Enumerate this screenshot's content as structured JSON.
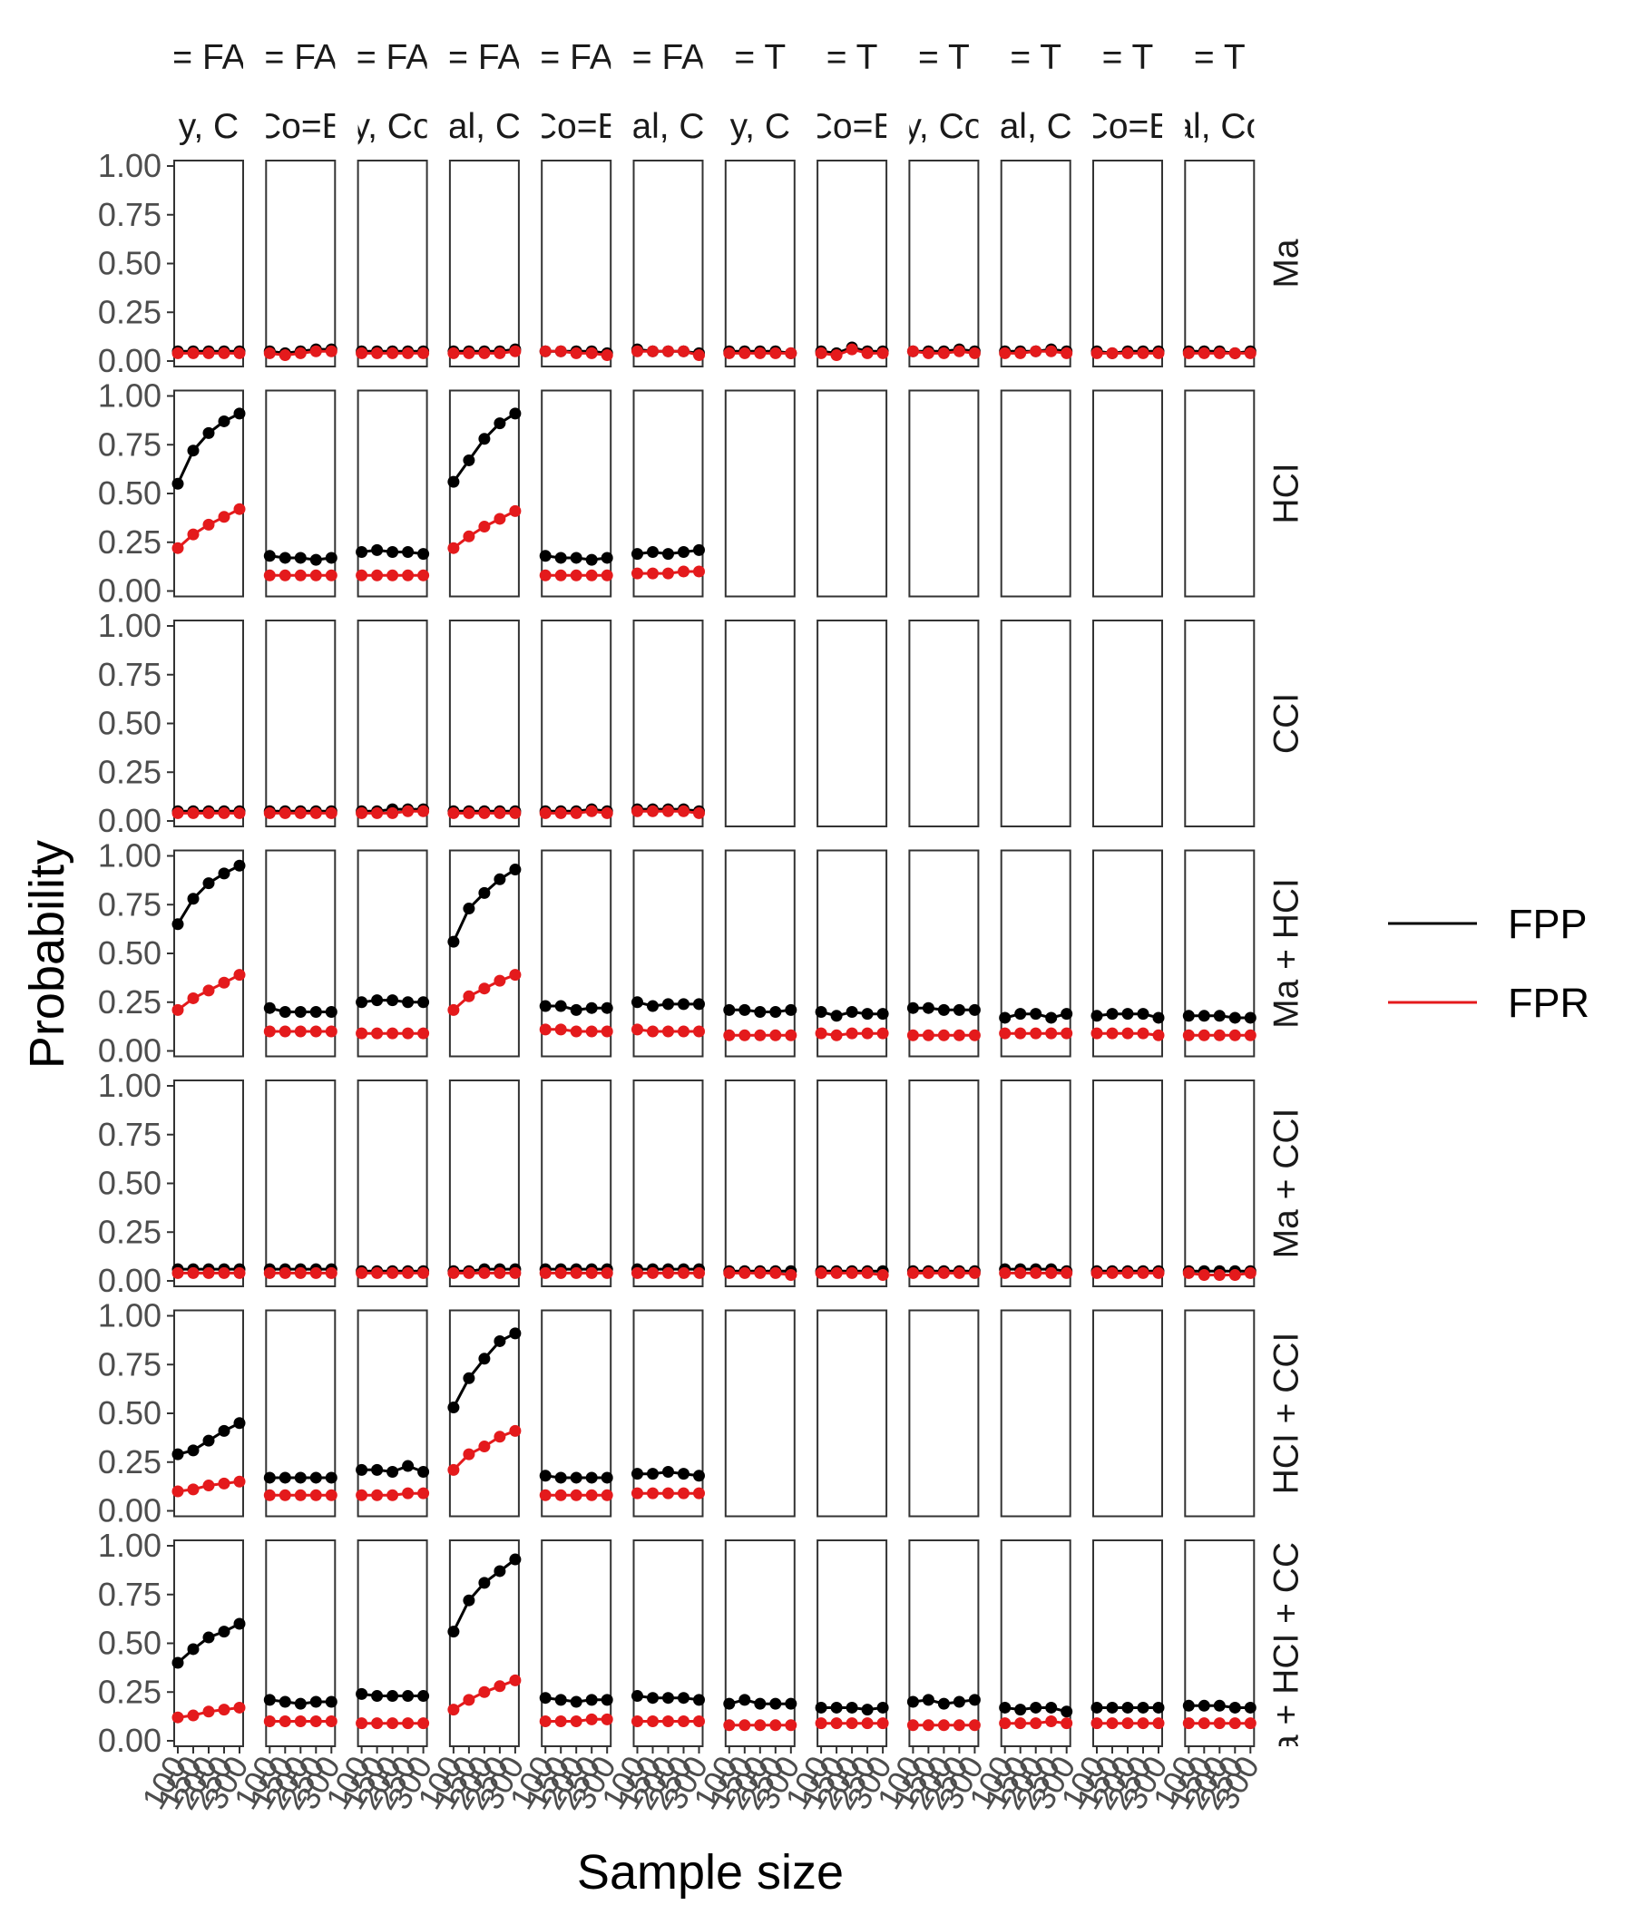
{
  "chart_data": {
    "type": "line",
    "ylabel": "Probability",
    "xlabel": "Sample size",
    "ylim": [
      0,
      1
    ],
    "y_ticks": [
      "0.00",
      "0.25",
      "0.50",
      "0.75",
      "1.00"
    ],
    "x": [
      100,
      150,
      200,
      250,
      300
    ],
    "x_tick_labels": [
      "100",
      "150",
      "200",
      "250",
      "300"
    ],
    "grid": false,
    "legend_position": "right",
    "legend": [
      {
        "name": "FPP",
        "color": "#000000"
      },
      {
        "name": "FPR",
        "color": "#e41a1c"
      }
    ],
    "column_strips_top": [
      "= FA",
      "= FA",
      "= FA",
      "= FA",
      "= FA",
      "= FA",
      "= T",
      "= T",
      "= T",
      "= T",
      "= T",
      "= T"
    ],
    "column_strips_bottom": [
      "y, C",
      "Co=E",
      "y, Co",
      "al, C",
      "Co=E",
      "al, C",
      "y, C",
      "Co=E",
      "y, Co",
      "al, C",
      "Co=E",
      "al, Co"
    ],
    "row_strips": [
      "Ma",
      "HCI",
      "CCI",
      "Ma + HCI",
      "Ma + CCI",
      "HCI + CCI",
      "a + HCI + CCI"
    ],
    "panels": [
      [
        {
          "FPP": [
            0.05,
            0.05,
            0.05,
            0.05,
            0.05
          ],
          "FPR": [
            0.04,
            0.04,
            0.04,
            0.04,
            0.04
          ]
        },
        {
          "FPP": [
            0.05,
            0.04,
            0.05,
            0.06,
            0.06
          ],
          "FPR": [
            0.04,
            0.03,
            0.04,
            0.05,
            0.05
          ]
        },
        {
          "FPP": [
            0.05,
            0.05,
            0.05,
            0.05,
            0.05
          ],
          "FPR": [
            0.04,
            0.04,
            0.04,
            0.04,
            0.04
          ]
        },
        {
          "FPP": [
            0.05,
            0.05,
            0.05,
            0.05,
            0.06
          ],
          "FPR": [
            0.04,
            0.04,
            0.04,
            0.04,
            0.05
          ]
        },
        {
          "FPP": [
            0.05,
            0.05,
            0.05,
            0.05,
            0.04
          ],
          "FPR": [
            0.05,
            0.05,
            0.04,
            0.04,
            0.03
          ]
        },
        {
          "FPP": [
            0.06,
            0.05,
            0.05,
            0.05,
            0.04
          ],
          "FPR": [
            0.05,
            0.05,
            0.05,
            0.05,
            0.03
          ]
        },
        {
          "FPP": [
            0.05,
            0.05,
            0.05,
            0.05,
            0.04
          ],
          "FPR": [
            0.04,
            0.04,
            0.04,
            0.04,
            0.04
          ]
        },
        {
          "FPP": [
            0.05,
            0.04,
            0.07,
            0.05,
            0.05
          ],
          "FPR": [
            0.04,
            0.03,
            0.06,
            0.04,
            0.04
          ]
        },
        {
          "FPP": [
            0.05,
            0.05,
            0.05,
            0.06,
            0.05
          ],
          "FPR": [
            0.05,
            0.04,
            0.04,
            0.05,
            0.04
          ]
        },
        {
          "FPP": [
            0.05,
            0.05,
            0.05,
            0.06,
            0.05
          ],
          "FPR": [
            0.04,
            0.04,
            0.05,
            0.05,
            0.04
          ]
        },
        {
          "FPP": [
            0.05,
            0.04,
            0.05,
            0.05,
            0.05
          ],
          "FPR": [
            0.04,
            0.04,
            0.04,
            0.04,
            0.04
          ]
        },
        {
          "FPP": [
            0.05,
            0.05,
            0.05,
            0.04,
            0.05
          ],
          "FPR": [
            0.04,
            0.04,
            0.04,
            0.04,
            0.04
          ]
        }
      ],
      [
        {
          "FPP": [
            0.55,
            0.72,
            0.81,
            0.87,
            0.91
          ],
          "FPR": [
            0.22,
            0.29,
            0.34,
            0.38,
            0.42
          ]
        },
        {
          "FPP": [
            0.18,
            0.17,
            0.17,
            0.16,
            0.17
          ],
          "FPR": [
            0.08,
            0.08,
            0.08,
            0.08,
            0.08
          ]
        },
        {
          "FPP": [
            0.2,
            0.21,
            0.2,
            0.2,
            0.19
          ],
          "FPR": [
            0.08,
            0.08,
            0.08,
            0.08,
            0.08
          ]
        },
        {
          "FPP": [
            0.56,
            0.67,
            0.78,
            0.86,
            0.91
          ],
          "FPR": [
            0.22,
            0.28,
            0.33,
            0.37,
            0.41
          ]
        },
        {
          "FPP": [
            0.18,
            0.17,
            0.17,
            0.16,
            0.17
          ],
          "FPR": [
            0.08,
            0.08,
            0.08,
            0.08,
            0.08
          ]
        },
        {
          "FPP": [
            0.19,
            0.2,
            0.19,
            0.2,
            0.21
          ],
          "FPR": [
            0.09,
            0.09,
            0.09,
            0.1,
            0.1
          ]
        },
        null,
        null,
        null,
        null,
        null,
        null
      ],
      [
        {
          "FPP": [
            0.05,
            0.05,
            0.05,
            0.05,
            0.05
          ],
          "FPR": [
            0.04,
            0.04,
            0.04,
            0.04,
            0.04
          ]
        },
        {
          "FPP": [
            0.05,
            0.05,
            0.05,
            0.05,
            0.05
          ],
          "FPR": [
            0.04,
            0.04,
            0.04,
            0.04,
            0.04
          ]
        },
        {
          "FPP": [
            0.05,
            0.05,
            0.06,
            0.06,
            0.06
          ],
          "FPR": [
            0.04,
            0.04,
            0.04,
            0.05,
            0.05
          ]
        },
        {
          "FPP": [
            0.05,
            0.05,
            0.05,
            0.05,
            0.05
          ],
          "FPR": [
            0.04,
            0.04,
            0.04,
            0.04,
            0.04
          ]
        },
        {
          "FPP": [
            0.05,
            0.05,
            0.05,
            0.06,
            0.05
          ],
          "FPR": [
            0.04,
            0.04,
            0.04,
            0.05,
            0.04
          ]
        },
        {
          "FPP": [
            0.06,
            0.06,
            0.06,
            0.06,
            0.05
          ],
          "FPR": [
            0.05,
            0.05,
            0.05,
            0.05,
            0.04
          ]
        },
        null,
        null,
        null,
        null,
        null,
        null
      ],
      [
        {
          "FPP": [
            0.65,
            0.78,
            0.86,
            0.91,
            0.95
          ],
          "FPR": [
            0.21,
            0.27,
            0.31,
            0.35,
            0.39
          ]
        },
        {
          "FPP": [
            0.22,
            0.2,
            0.2,
            0.2,
            0.2
          ],
          "FPR": [
            0.1,
            0.1,
            0.1,
            0.1,
            0.1
          ]
        },
        {
          "FPP": [
            0.25,
            0.26,
            0.26,
            0.25,
            0.25
          ],
          "FPR": [
            0.09,
            0.09,
            0.09,
            0.09,
            0.09
          ]
        },
        {
          "FPP": [
            0.56,
            0.73,
            0.81,
            0.88,
            0.93
          ],
          "FPR": [
            0.21,
            0.28,
            0.32,
            0.36,
            0.39
          ]
        },
        {
          "FPP": [
            0.23,
            0.23,
            0.21,
            0.22,
            0.22
          ],
          "FPR": [
            0.11,
            0.11,
            0.1,
            0.1,
            0.1
          ]
        },
        {
          "FPP": [
            0.25,
            0.23,
            0.24,
            0.24,
            0.24
          ],
          "FPR": [
            0.11,
            0.1,
            0.1,
            0.1,
            0.1
          ]
        },
        {
          "FPP": [
            0.21,
            0.21,
            0.2,
            0.2,
            0.21
          ],
          "FPR": [
            0.08,
            0.08,
            0.08,
            0.08,
            0.08
          ]
        },
        {
          "FPP": [
            0.2,
            0.18,
            0.2,
            0.19,
            0.19
          ],
          "FPR": [
            0.09,
            0.08,
            0.09,
            0.09,
            0.09
          ]
        },
        {
          "FPP": [
            0.22,
            0.22,
            0.21,
            0.21,
            0.21
          ],
          "FPR": [
            0.08,
            0.08,
            0.08,
            0.08,
            0.08
          ]
        },
        {
          "FPP": [
            0.17,
            0.19,
            0.19,
            0.17,
            0.19
          ],
          "FPR": [
            0.09,
            0.09,
            0.09,
            0.09,
            0.09
          ]
        },
        {
          "FPP": [
            0.18,
            0.19,
            0.19,
            0.19,
            0.17
          ],
          "FPR": [
            0.09,
            0.09,
            0.09,
            0.09,
            0.08
          ]
        },
        {
          "FPP": [
            0.18,
            0.18,
            0.18,
            0.17,
            0.17
          ],
          "FPR": [
            0.08,
            0.08,
            0.08,
            0.08,
            0.08
          ]
        }
      ],
      [
        {
          "FPP": [
            0.06,
            0.06,
            0.06,
            0.06,
            0.06
          ],
          "FPR": [
            0.04,
            0.04,
            0.04,
            0.04,
            0.04
          ]
        },
        {
          "FPP": [
            0.06,
            0.06,
            0.06,
            0.06,
            0.06
          ],
          "FPR": [
            0.04,
            0.04,
            0.04,
            0.04,
            0.04
          ]
        },
        {
          "FPP": [
            0.05,
            0.05,
            0.05,
            0.05,
            0.05
          ],
          "FPR": [
            0.04,
            0.04,
            0.04,
            0.04,
            0.04
          ]
        },
        {
          "FPP": [
            0.05,
            0.05,
            0.06,
            0.06,
            0.06
          ],
          "FPR": [
            0.04,
            0.04,
            0.04,
            0.04,
            0.04
          ]
        },
        {
          "FPP": [
            0.06,
            0.06,
            0.06,
            0.06,
            0.06
          ],
          "FPR": [
            0.04,
            0.04,
            0.04,
            0.04,
            0.04
          ]
        },
        {
          "FPP": [
            0.06,
            0.06,
            0.06,
            0.06,
            0.06
          ],
          "FPR": [
            0.04,
            0.04,
            0.04,
            0.04,
            0.04
          ]
        },
        {
          "FPP": [
            0.05,
            0.05,
            0.05,
            0.05,
            0.05
          ],
          "FPR": [
            0.04,
            0.04,
            0.04,
            0.04,
            0.03
          ]
        },
        {
          "FPP": [
            0.05,
            0.05,
            0.05,
            0.05,
            0.05
          ],
          "FPR": [
            0.04,
            0.04,
            0.04,
            0.04,
            0.03
          ]
        },
        {
          "FPP": [
            0.05,
            0.05,
            0.05,
            0.05,
            0.05
          ],
          "FPR": [
            0.04,
            0.04,
            0.04,
            0.04,
            0.04
          ]
        },
        {
          "FPP": [
            0.06,
            0.06,
            0.06,
            0.06,
            0.05
          ],
          "FPR": [
            0.04,
            0.04,
            0.04,
            0.04,
            0.04
          ]
        },
        {
          "FPP": [
            0.05,
            0.05,
            0.05,
            0.05,
            0.05
          ],
          "FPR": [
            0.04,
            0.04,
            0.04,
            0.04,
            0.04
          ]
        },
        {
          "FPP": [
            0.05,
            0.05,
            0.05,
            0.05,
            0.05
          ],
          "FPR": [
            0.04,
            0.03,
            0.03,
            0.03,
            0.04
          ]
        }
      ],
      [
        {
          "FPP": [
            0.29,
            0.31,
            0.36,
            0.41,
            0.45
          ],
          "FPR": [
            0.1,
            0.11,
            0.13,
            0.14,
            0.15
          ]
        },
        {
          "FPP": [
            0.17,
            0.17,
            0.17,
            0.17,
            0.17
          ],
          "FPR": [
            0.08,
            0.08,
            0.08,
            0.08,
            0.08
          ]
        },
        {
          "FPP": [
            0.21,
            0.21,
            0.2,
            0.23,
            0.2
          ],
          "FPR": [
            0.08,
            0.08,
            0.08,
            0.09,
            0.09
          ]
        },
        {
          "FPP": [
            0.53,
            0.68,
            0.78,
            0.87,
            0.91
          ],
          "FPR": [
            0.21,
            0.29,
            0.33,
            0.38,
            0.41
          ]
        },
        {
          "FPP": [
            0.18,
            0.17,
            0.17,
            0.17,
            0.17
          ],
          "FPR": [
            0.08,
            0.08,
            0.08,
            0.08,
            0.08
          ]
        },
        {
          "FPP": [
            0.19,
            0.19,
            0.2,
            0.19,
            0.18
          ],
          "FPR": [
            0.09,
            0.09,
            0.09,
            0.09,
            0.09
          ]
        },
        null,
        null,
        null,
        null,
        null,
        null
      ],
      [
        {
          "FPP": [
            0.4,
            0.47,
            0.53,
            0.56,
            0.6
          ],
          "FPR": [
            0.12,
            0.13,
            0.15,
            0.16,
            0.17
          ]
        },
        {
          "FPP": [
            0.21,
            0.2,
            0.19,
            0.2,
            0.2
          ],
          "FPR": [
            0.1,
            0.1,
            0.1,
            0.1,
            0.1
          ]
        },
        {
          "FPP": [
            0.24,
            0.23,
            0.23,
            0.23,
            0.23
          ],
          "FPR": [
            0.09,
            0.09,
            0.09,
            0.09,
            0.09
          ]
        },
        {
          "FPP": [
            0.56,
            0.72,
            0.81,
            0.87,
            0.93
          ],
          "FPR": [
            0.16,
            0.21,
            0.25,
            0.28,
            0.31
          ]
        },
        {
          "FPP": [
            0.22,
            0.21,
            0.2,
            0.21,
            0.21
          ],
          "FPR": [
            0.1,
            0.1,
            0.1,
            0.11,
            0.11
          ]
        },
        {
          "FPP": [
            0.23,
            0.22,
            0.22,
            0.22,
            0.21
          ],
          "FPR": [
            0.1,
            0.1,
            0.1,
            0.1,
            0.1
          ]
        },
        {
          "FPP": [
            0.19,
            0.21,
            0.19,
            0.19,
            0.19
          ],
          "FPR": [
            0.08,
            0.08,
            0.08,
            0.08,
            0.08
          ]
        },
        {
          "FPP": [
            0.17,
            0.17,
            0.17,
            0.16,
            0.17
          ],
          "FPR": [
            0.09,
            0.09,
            0.09,
            0.09,
            0.09
          ]
        },
        {
          "FPP": [
            0.2,
            0.21,
            0.19,
            0.2,
            0.21
          ],
          "FPR": [
            0.08,
            0.08,
            0.08,
            0.08,
            0.08
          ]
        },
        {
          "FPP": [
            0.17,
            0.16,
            0.17,
            0.17,
            0.15
          ],
          "FPR": [
            0.09,
            0.09,
            0.09,
            0.1,
            0.09
          ]
        },
        {
          "FPP": [
            0.17,
            0.17,
            0.17,
            0.17,
            0.17
          ],
          "FPR": [
            0.09,
            0.09,
            0.09,
            0.09,
            0.09
          ]
        },
        {
          "FPP": [
            0.18,
            0.18,
            0.18,
            0.17,
            0.17
          ],
          "FPR": [
            0.09,
            0.09,
            0.09,
            0.09,
            0.09
          ]
        }
      ]
    ]
  }
}
